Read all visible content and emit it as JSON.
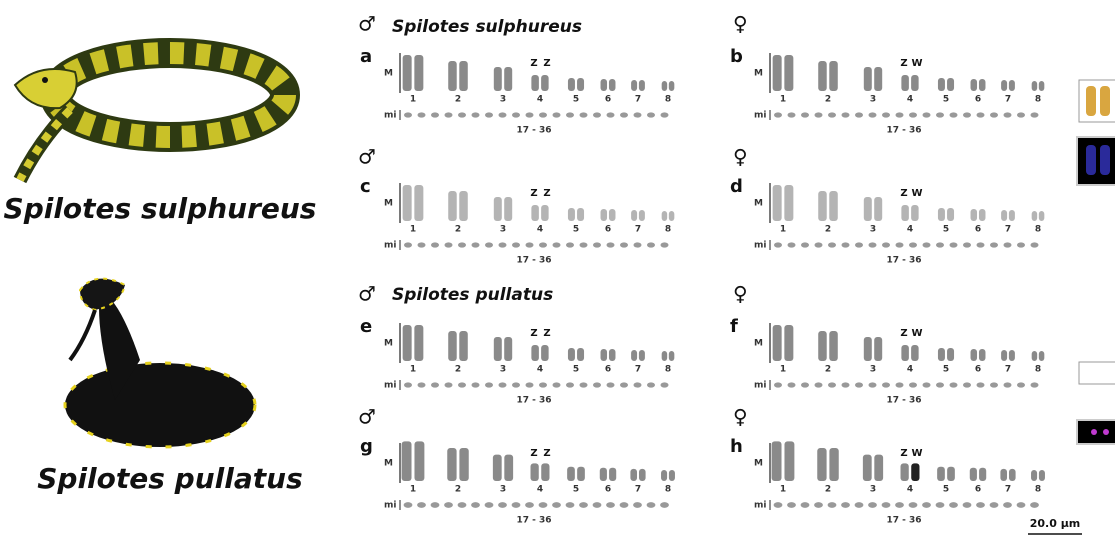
{
  "illustrations": [
    {
      "name": "Spilotes sulphureus"
    },
    {
      "name": "Spilotes pullatus"
    }
  ],
  "karyotype_groups": [
    {
      "name": "Spilotes sulphureus"
    },
    {
      "name": "Spilotes pullatus"
    }
  ],
  "chromosome_pairs": [
    "1",
    "2",
    "3",
    "4",
    "5",
    "6",
    "7",
    "8"
  ],
  "panels": [
    {
      "letter": "a",
      "sex": "♂",
      "macro_label": "M",
      "sex_chromosomes": [
        "Z",
        "Z"
      ],
      "micro_label": "mi",
      "micro_range": "17 - 36"
    },
    {
      "letter": "b",
      "sex": "♀",
      "macro_label": "M",
      "sex_chromosomes": [
        "Z",
        "W"
      ],
      "micro_label": "mi",
      "micro_range": "17 - 36"
    },
    {
      "letter": "c",
      "sex": "♂",
      "macro_label": "M",
      "sex_chromosomes": [
        "Z",
        "Z"
      ],
      "micro_label": "mi",
      "micro_range": "17 - 36"
    },
    {
      "letter": "d",
      "sex": "♀",
      "macro_label": "M",
      "sex_chromosomes": [
        "Z",
        "W"
      ],
      "micro_label": "mi",
      "micro_range": "17 - 36"
    },
    {
      "letter": "e",
      "sex": "♂",
      "macro_label": "M",
      "sex_chromosomes": [
        "Z",
        "Z"
      ],
      "micro_label": "mi",
      "micro_range": "17 - 36"
    },
    {
      "letter": "f",
      "sex": "♀",
      "macro_label": "M",
      "sex_chromosomes": [
        "Z",
        "W"
      ],
      "micro_label": "mi",
      "micro_range": "17 - 36"
    },
    {
      "letter": "g",
      "sex": "♂",
      "macro_label": "M",
      "sex_chromosomes": [
        "Z",
        "Z"
      ],
      "micro_label": "mi",
      "micro_range": "17 - 36"
    },
    {
      "letter": "h",
      "sex": "♀",
      "macro_label": "M",
      "sex_chromosomes": [
        "Z",
        "W"
      ],
      "micro_label": "mi",
      "micro_range": "17 - 36"
    }
  ],
  "scale_bar": "20.0 µm"
}
